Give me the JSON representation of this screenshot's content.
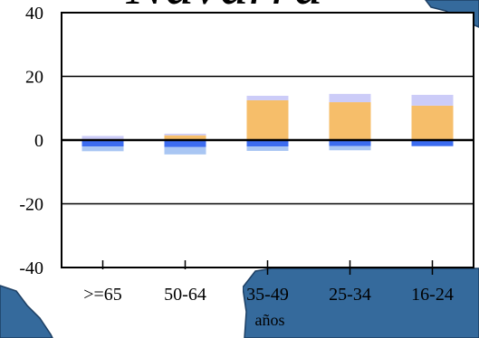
{
  "chart_data": {
    "type": "bar",
    "title": "Navarra",
    "xlabel": "años",
    "ylabel": "",
    "ylim": [
      -40,
      40
    ],
    "yticks": [
      "40",
      "20",
      "0",
      "-20",
      "-40"
    ],
    "categories": [
      ">=65",
      "50-64",
      "35-49",
      "25-34",
      "16-24"
    ],
    "grid": true,
    "series": [
      {
        "color": "#F6BE6A",
        "values": [
          0.3,
          1.5,
          12.5,
          11.9,
          10.8
        ]
      },
      {
        "color": "#CCCCF8",
        "values": [
          1.0,
          0.5,
          1.4,
          2.6,
          3.4
        ]
      },
      {
        "color": "#3C6CF0",
        "values": [
          -2.0,
          -2.2,
          -2.0,
          -1.9,
          -1.9
        ]
      },
      {
        "color": "#A9C6F3",
        "values": [
          -1.5,
          -2.3,
          -1.4,
          -1.3,
          0
        ]
      }
    ],
    "colors": {
      "map_sea": "#356A9C",
      "map_land": "#2A5D8E",
      "background": "#FFFFFF"
    }
  }
}
